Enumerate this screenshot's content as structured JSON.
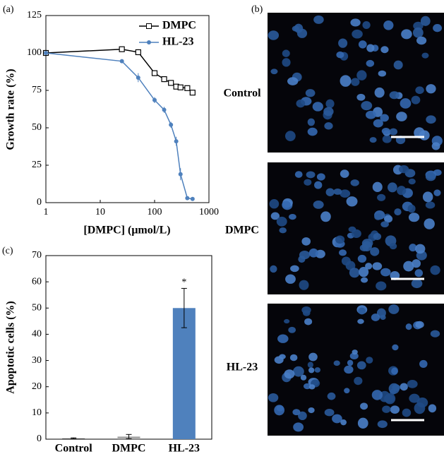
{
  "chart_data": [
    {
      "type": "line",
      "panel_label": "(a)",
      "x_label": "[DMPC] (μmol/L)",
      "y_label": "Growth rate (%)",
      "xscale": "log",
      "xlim": [
        1,
        1000
      ],
      "xticks": [
        1,
        10,
        100,
        1000
      ],
      "ylim": [
        0,
        125
      ],
      "yticks": [
        0,
        25,
        50,
        75,
        100,
        125
      ],
      "legend": "upper right",
      "grid": false,
      "x": [
        1,
        25,
        50,
        100,
        150,
        200,
        250,
        300,
        400,
        500
      ],
      "series": [
        {
          "name": "DMPC",
          "color": "#000000",
          "marker": "square",
          "values": [
            100,
            102.5,
            100.5,
            86.5,
            82.5,
            80,
            77.5,
            77,
            76.5,
            73.5
          ],
          "errors": [
            0,
            1,
            2,
            2,
            2,
            1,
            1,
            1,
            1,
            1
          ]
        },
        {
          "name": "HL-23",
          "color": "#4f81bd",
          "marker": "circle",
          "values": [
            100,
            94.5,
            83.5,
            68.5,
            62,
            52,
            41,
            19,
            3,
            2.5
          ],
          "errors": [
            0,
            1,
            3,
            2,
            2,
            2,
            3,
            4,
            1,
            1
          ]
        }
      ]
    },
    {
      "type": "bar",
      "panel_label": "(c)",
      "y_label": "Apoptotic cells (%)",
      "categories": [
        "Control",
        "DMPC",
        "HL-23"
      ],
      "values": [
        0.3,
        1,
        50
      ],
      "errors": [
        0.2,
        0.8,
        7.5
      ],
      "colors": [
        "#404040",
        "#a6a6a6",
        "#4f81bd"
      ],
      "ylim": [
        0,
        70
      ],
      "yticks": [
        0,
        10,
        20,
        30,
        40,
        50,
        60,
        70
      ],
      "grid": false,
      "annotations": [
        {
          "text": "*",
          "category": 2
        }
      ]
    }
  ],
  "panel_b": {
    "label": "(b)",
    "images": [
      "Control",
      "DMPC",
      "HL-23"
    ]
  }
}
